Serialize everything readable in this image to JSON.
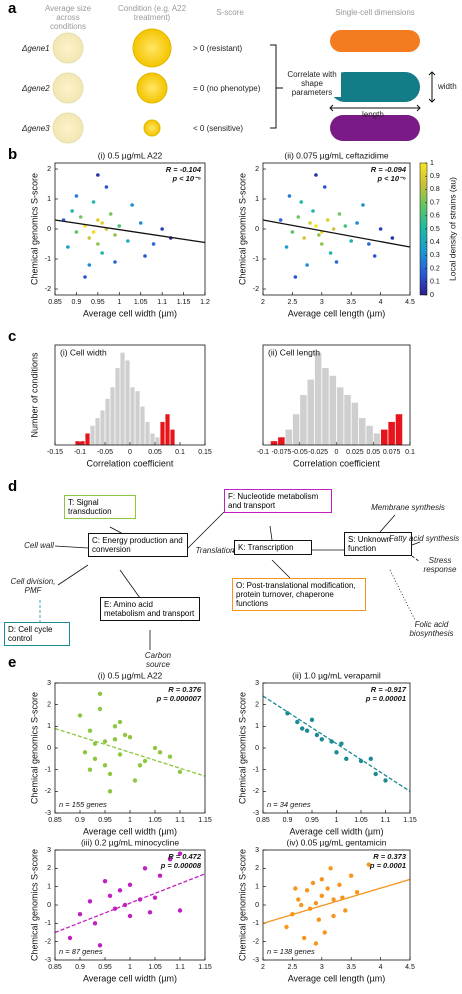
{
  "panel_labels": [
    "a",
    "b",
    "c",
    "d",
    "e"
  ],
  "panel_a": {
    "headers": [
      "Average size across conditions",
      "Condition (e.g. A22 treatment)",
      "S-score",
      "Single-cell dimensions"
    ],
    "genes": [
      "Δgene1",
      "Δgene2",
      "Δgene3"
    ],
    "scores": [
      "> 0 (resistant)",
      "= 0 (no phenotype)",
      "< 0 (sensitive)"
    ],
    "correlate": "Correlate with shape parameters",
    "width": "width",
    "length": "length"
  },
  "chart_data": [
    {
      "type": "scatter",
      "title": "(i) 0.5 µg/mL A22",
      "xlabel": "Average cell width (µm)",
      "ylabel": "Chemical genomics S-score",
      "xlim": [
        0.85,
        1.2
      ],
      "xticks": [
        0.85,
        0.9,
        0.95,
        1,
        1.05,
        1.1,
        1.15,
        1.2
      ],
      "ylim": [
        -2.2,
        2.2
      ],
      "yticks": [
        -2,
        -1,
        0,
        1,
        2
      ],
      "annotations": [
        "R = -0.104",
        "p < 10⁻⁶"
      ],
      "x": [
        0.92,
        0.94,
        0.96,
        0.95,
        0.93,
        0.97,
        0.99,
        0.91,
        0.98,
        0.95,
        0.9,
        1.0,
        0.89,
        1.02,
        0.94,
        0.96,
        0.88,
        1.05,
        0.93,
        1.03,
        0.87,
        1.08,
        0.97,
        0.92,
        1.1,
        0.99,
        0.9,
        1.06,
        0.95,
        1.12
      ],
      "y": [
        0.1,
        -0.1,
        0.2,
        0.3,
        -0.3,
        0,
        -0.2,
        0.4,
        0.5,
        -0.5,
        -0.1,
        0.1,
        0.6,
        -0.4,
        0.9,
        -0.8,
        -0.6,
        0.2,
        -1.2,
        0.8,
        0.3,
        -0.5,
        1.4,
        -1.6,
        0,
        -1.1,
        1.1,
        -0.9,
        1.8,
        -0.3
      ],
      "density": [
        1,
        0.95,
        0.9,
        0.9,
        0.85,
        0.85,
        0.75,
        0.7,
        0.7,
        0.75,
        0.65,
        0.6,
        0.5,
        0.45,
        0.5,
        0.5,
        0.35,
        0.3,
        0.3,
        0.3,
        0.2,
        0.2,
        0.15,
        0.15,
        0.1,
        0.2,
        0.25,
        0.15,
        0.05,
        0.05
      ],
      "fit_x": [
        0.85,
        1.2
      ],
      "fit_y": [
        0.3,
        -0.45
      ],
      "fit_color": "#111111",
      "fit_dash": false
    },
    {
      "type": "scatter",
      "title": "(ii) 0.075 µg/mL ceftazidime",
      "xlabel": "Average cell length (µm)",
      "ylabel": "Chemical genomics S-score",
      "xlim": [
        2,
        4.5
      ],
      "xticks": [
        2,
        2.5,
        3,
        3.5,
        4,
        4.5
      ],
      "ylim": [
        -2.2,
        2.2
      ],
      "yticks": [
        -2,
        -1,
        0,
        1,
        2
      ],
      "annotations": [
        "R = -0.094",
        "p < 10⁻⁶"
      ],
      "x": [
        2.9,
        3.0,
        2.8,
        3.1,
        2.7,
        3.2,
        2.95,
        2.6,
        3.3,
        3.0,
        2.5,
        3.4,
        2.85,
        3.5,
        2.65,
        3.15,
        2.4,
        3.6,
        2.75,
        3.7,
        2.3,
        3.8,
        3.05,
        2.55,
        4.0,
        3.25,
        2.45,
        3.9,
        2.9,
        4.2
      ],
      "y": [
        0.1,
        -0.1,
        0.2,
        0.3,
        -0.3,
        0,
        -0.2,
        0.4,
        0.5,
        -0.5,
        -0.1,
        0.1,
        0.6,
        -0.4,
        0.9,
        -0.8,
        -0.6,
        0.2,
        -1.2,
        0.8,
        0.3,
        -0.5,
        1.4,
        -1.6,
        0,
        -1.1,
        1.1,
        -0.9,
        1.8,
        -0.3
      ],
      "density": [
        1,
        0.95,
        0.9,
        0.9,
        0.85,
        0.85,
        0.75,
        0.7,
        0.7,
        0.75,
        0.65,
        0.6,
        0.5,
        0.45,
        0.5,
        0.5,
        0.35,
        0.3,
        0.3,
        0.3,
        0.2,
        0.2,
        0.15,
        0.15,
        0.1,
        0.2,
        0.25,
        0.15,
        0.05,
        0.05
      ],
      "fit_x": [
        2,
        4.5
      ],
      "fit_y": [
        0.3,
        -0.6
      ],
      "fit_color": "#111111",
      "fit_dash": false,
      "colorbar": {
        "label": "Local density of strains (au)",
        "lim": [
          0,
          1
        ],
        "ticks": [
          0,
          0.1,
          0.2,
          0.3,
          0.4,
          0.5,
          0.6,
          0.7,
          0.8,
          0.9,
          1
        ],
        "colors": [
          "#2c1f8a",
          "#2a5bd7",
          "#1a9bd0",
          "#1fb7a8",
          "#5cc663",
          "#c8c03a",
          "#f9e51e"
        ]
      }
    },
    {
      "type": "histogram",
      "title": "(i) Cell width",
      "xlabel": "Correlation coefficient",
      "ylabel": "Number of conditions",
      "xlim": [
        -0.15,
        0.15
      ],
      "xticks": [
        -0.15,
        -0.1,
        -0.05,
        0,
        0.05,
        0.1,
        0.15
      ],
      "ylim": [
        0,
        26
      ],
      "bins": [
        -0.11,
        -0.1,
        -0.09,
        -0.08,
        -0.07,
        -0.06,
        -0.05,
        -0.04,
        -0.03,
        -0.02,
        -0.01,
        0,
        0.01,
        0.02,
        0.03,
        0.04,
        0.05,
        0.06,
        0.07,
        0.08,
        0.09
      ],
      "counts": [
        1,
        1,
        3,
        5,
        7,
        9,
        12,
        15,
        20,
        24,
        22,
        15,
        14,
        10,
        6,
        3,
        2,
        6,
        8,
        4
      ],
      "bar_colors": [
        "#e8141b",
        "#e8141b",
        "#e8141b",
        "#cfcfcf",
        "#cfcfcf",
        "#cfcfcf",
        "#cfcfcf",
        "#cfcfcf",
        "#cfcfcf",
        "#cfcfcf",
        "#cfcfcf",
        "#cfcfcf",
        "#cfcfcf",
        "#cfcfcf",
        "#cfcfcf",
        "#cfcfcf",
        "#cfcfcf",
        "#e8141b",
        "#e8141b",
        "#e8141b"
      ]
    },
    {
      "type": "histogram",
      "title": "(ii) Cell length",
      "xlabel": "Correlation coefficient",
      "xlim": [
        -0.1,
        0.1
      ],
      "xticks": [
        -0.1,
        -0.075,
        -0.05,
        -0.025,
        0,
        0.025,
        0.05,
        0.075,
        0.1
      ],
      "ylim": [
        0,
        26
      ],
      "bins": [
        -0.09,
        -0.08,
        -0.07,
        -0.06,
        -0.05,
        -0.04,
        -0.03,
        -0.02,
        -0.01,
        0,
        0.01,
        0.02,
        0.03,
        0.04,
        0.05,
        0.06,
        0.07,
        0.08,
        0.09
      ],
      "counts": [
        1,
        2,
        4,
        8,
        13,
        17,
        24,
        20,
        18,
        15,
        13,
        11,
        7,
        5,
        3,
        4,
        6,
        8
      ],
      "bar_colors": [
        "#e8141b",
        "#e8141b",
        "#cfcfcf",
        "#cfcfcf",
        "#cfcfcf",
        "#cfcfcf",
        "#cfcfcf",
        "#cfcfcf",
        "#cfcfcf",
        "#cfcfcf",
        "#cfcfcf",
        "#cfcfcf",
        "#cfcfcf",
        "#cfcfcf",
        "#cfcfcf",
        "#e8141b",
        "#e8141b",
        "#e8141b"
      ]
    },
    {
      "type": "scatter",
      "title": "(i) 0.5 µg/mL A22",
      "xlabel": "Average cell width (µm)",
      "ylabel": "Chemical genomics S-score",
      "xlim": [
        0.85,
        1.15
      ],
      "xticks": [
        0.85,
        0.9,
        0.95,
        1,
        1.05,
        1.1,
        1.15
      ],
      "ylim": [
        -3,
        3
      ],
      "yticks": [
        -3,
        -2,
        -1,
        0,
        1,
        2,
        3
      ],
      "annotations": [
        "R = 0.376",
        "p = 0.000007"
      ],
      "n_label": "n = 155 genes",
      "color": "#8dc63f",
      "x": [
        0.9,
        0.92,
        0.93,
        0.94,
        0.95,
        0.96,
        0.97,
        0.98,
        1.0,
        1.02,
        1.05,
        1.08,
        1.1,
        0.91,
        0.94,
        0.96,
        0.99,
        1.03,
        1.06,
        0.93,
        0.95,
        0.98,
        1.01,
        0.92,
        0.97
      ],
      "y": [
        1.5,
        0.8,
        -0.5,
        2.5,
        0.3,
        -1.2,
        1.0,
        -0.3,
        0.5,
        -0.8,
        0,
        -0.4,
        -1.1,
        -0.2,
        1.8,
        -2.0,
        0.6,
        -0.6,
        -0.2,
        0.2,
        -0.8,
        1.2,
        -1.5,
        -1.0,
        0.4
      ],
      "fit_x": [
        0.85,
        1.15
      ],
      "fit_y": [
        0.9,
        -1.3
      ],
      "fit_color": "#8dc63f",
      "fit_dash": true
    },
    {
      "type": "scatter",
      "title": "(ii) 1.0 µg/mL verapamil",
      "xlabel": "Average cell width (µm)",
      "ylabel": "Chemical genomics S-score",
      "xlim": [
        0.85,
        1.15
      ],
      "xticks": [
        0.85,
        0.9,
        0.95,
        1,
        1.05,
        1.1,
        1.15
      ],
      "ylim": [
        -3,
        3
      ],
      "yticks": [
        -3,
        -2,
        -1,
        0,
        1,
        2,
        3
      ],
      "annotations": [
        "R = -0.917",
        "p = 0.00001"
      ],
      "n_label": "n = 34 genes",
      "color": "#1a8a94",
      "x": [
        0.9,
        0.92,
        0.93,
        0.95,
        0.96,
        0.97,
        0.99,
        1.0,
        1.01,
        1.02,
        1.05,
        1.07,
        1.08,
        1.1,
        0.94
      ],
      "y": [
        1.6,
        1.2,
        0.9,
        1.3,
        0.6,
        0.4,
        0.3,
        -0.2,
        0.2,
        -0.5,
        -0.6,
        -0.5,
        -1.2,
        -1.5,
        0.8
      ],
      "fit_x": [
        0.85,
        1.15
      ],
      "fit_y": [
        2.4,
        -2.0
      ],
      "fit_color": "#1a8a94",
      "fit_dash": true
    },
    {
      "type": "scatter",
      "title": "(iii) 0.2 µg/mL minocycline",
      "xlabel": "Average cell width (µm)",
      "ylabel": "Chemical genomics S-score",
      "xlim": [
        0.85,
        1.15
      ],
      "xticks": [
        0.85,
        0.9,
        0.95,
        1,
        1.05,
        1.1,
        1.15
      ],
      "ylim": [
        -3,
        3
      ],
      "yticks": [
        -3,
        -2,
        -1,
        0,
        1,
        2,
        3
      ],
      "annotations": [
        "R = 0.472",
        "p = 0.00008"
      ],
      "n_label": "n = 87 genes",
      "color": "#c020c0",
      "x": [
        0.88,
        0.9,
        0.92,
        0.93,
        0.95,
        0.96,
        0.97,
        0.98,
        1.0,
        1.0,
        1.02,
        1.03,
        1.05,
        1.06,
        1.08,
        1.1,
        1.1,
        0.94,
        0.99,
        1.04
      ],
      "y": [
        -1.8,
        -0.5,
        0.2,
        -1.0,
        1.3,
        0.5,
        -0.2,
        0.8,
        -0.6,
        1.1,
        0.3,
        2.0,
        0.4,
        1.6,
        2.5,
        -0.3,
        2.8,
        -2.2,
        0.0,
        -0.4
      ],
      "fit_x": [
        0.85,
        1.15
      ],
      "fit_y": [
        -1.5,
        1.7
      ],
      "fit_color": "#c020c0",
      "fit_dash": true
    },
    {
      "type": "scatter",
      "title": "(iv) 0.05 µg/mL gentamicin",
      "xlabel": "Average cell length (µm)",
      "ylabel": "Chemical genomics S-score",
      "xlim": [
        2,
        4.5
      ],
      "xticks": [
        2,
        2.5,
        3,
        3.5,
        4,
        4.5
      ],
      "ylim": [
        -3,
        3
      ],
      "yticks": [
        -3,
        -2,
        -1,
        0,
        1,
        2,
        3
      ],
      "annotations": [
        "R = 0.373",
        "p = 0.0001"
      ],
      "n_label": "n = 138 genes",
      "color": "#f7941d",
      "x": [
        2.4,
        2.5,
        2.6,
        2.7,
        2.75,
        2.8,
        2.85,
        2.9,
        2.95,
        3.0,
        3.05,
        3.1,
        3.15,
        3.2,
        3.3,
        3.4,
        3.5,
        3.6,
        3.8,
        2.65,
        2.9,
        3.0,
        3.2,
        3.35,
        2.55
      ],
      "y": [
        -1.2,
        -0.5,
        0.3,
        -1.8,
        0.8,
        -0.2,
        1.2,
        0.1,
        -0.8,
        0.5,
        -1.5,
        0.9,
        2.0,
        0.3,
        1.1,
        -0.3,
        1.6,
        0.7,
        2.2,
        0.0,
        -2.1,
        1.4,
        -0.6,
        0.4,
        0.9
      ],
      "fit_x": [
        2,
        4.5
      ],
      "fit_y": [
        -1.0,
        1.4
      ],
      "fit_color": "#f7941d",
      "fit_dash": false
    }
  ],
  "panel_d": {
    "boxes": [
      {
        "label": "T: Signal transduction",
        "color": "#8dc63f"
      },
      {
        "label": "C: Energy production and conversion",
        "color": "#111111"
      },
      {
        "label": "D: Cell cycle control",
        "color": "#1a8a94"
      },
      {
        "label": "E: Amino acid metabolism and transport",
        "color": "#111111"
      },
      {
        "label": "F: Nucleotide metabolism and transport",
        "color": "#c020c0"
      },
      {
        "label": "K: Transcription",
        "color": "#111111"
      },
      {
        "label": "O: Post-translational modification, protein turnover, chaperone functions",
        "color": "#f7941d"
      },
      {
        "label": "S: Unknown function",
        "color": "#111111"
      }
    ],
    "notes": [
      "Cell wall",
      "Cell division, PMF",
      "Carbon source",
      "Translation",
      "Membrane synthesis",
      "Fatty acid synthesis",
      "Stress response",
      "Folic acid biosynthesis"
    ]
  }
}
